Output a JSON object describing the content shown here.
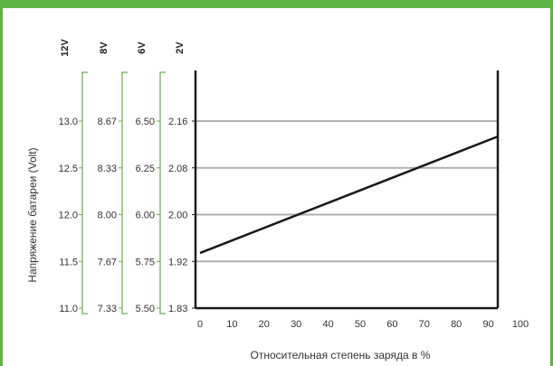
{
  "header": {
    "banner_text": ""
  },
  "colors": {
    "frame": "#5fb246",
    "scale_bracket": "#5fb246",
    "grid": "#b0b0b0",
    "line": "#1a1a1a",
    "text": "#333333"
  },
  "chart_data": {
    "type": "line",
    "title": "",
    "xlabel": "Относительная степень заряда в %",
    "ylabel": "Напряжение батареи (Volt)",
    "xlim": [
      0,
      100
    ],
    "x_ticks": [
      "0",
      "10",
      "20",
      "30",
      "40",
      "50",
      "60",
      "70",
      "80",
      "90",
      "100"
    ],
    "ylim": [
      11.0,
      13.0
    ],
    "y_scales": [
      {
        "name": "12V",
        "ticks": [
          "13.0",
          "12.5",
          "12.0",
          "11.5",
          "11.0"
        ]
      },
      {
        "name": "8V",
        "ticks": [
          "8.67",
          "8.33",
          "8.00",
          "7.67",
          "7.33"
        ]
      },
      {
        "name": "6V",
        "ticks": [
          "6.50",
          "6.25",
          "6.00",
          "5.75",
          "5.50"
        ]
      },
      {
        "name": "2V",
        "ticks": [
          "2.16",
          "2.08",
          "2.00",
          "1.92",
          "1.83"
        ]
      }
    ],
    "series": [
      {
        "x": [
          0,
          100
        ],
        "y": [
          11.59,
          12.93
        ]
      }
    ],
    "grid": true
  }
}
